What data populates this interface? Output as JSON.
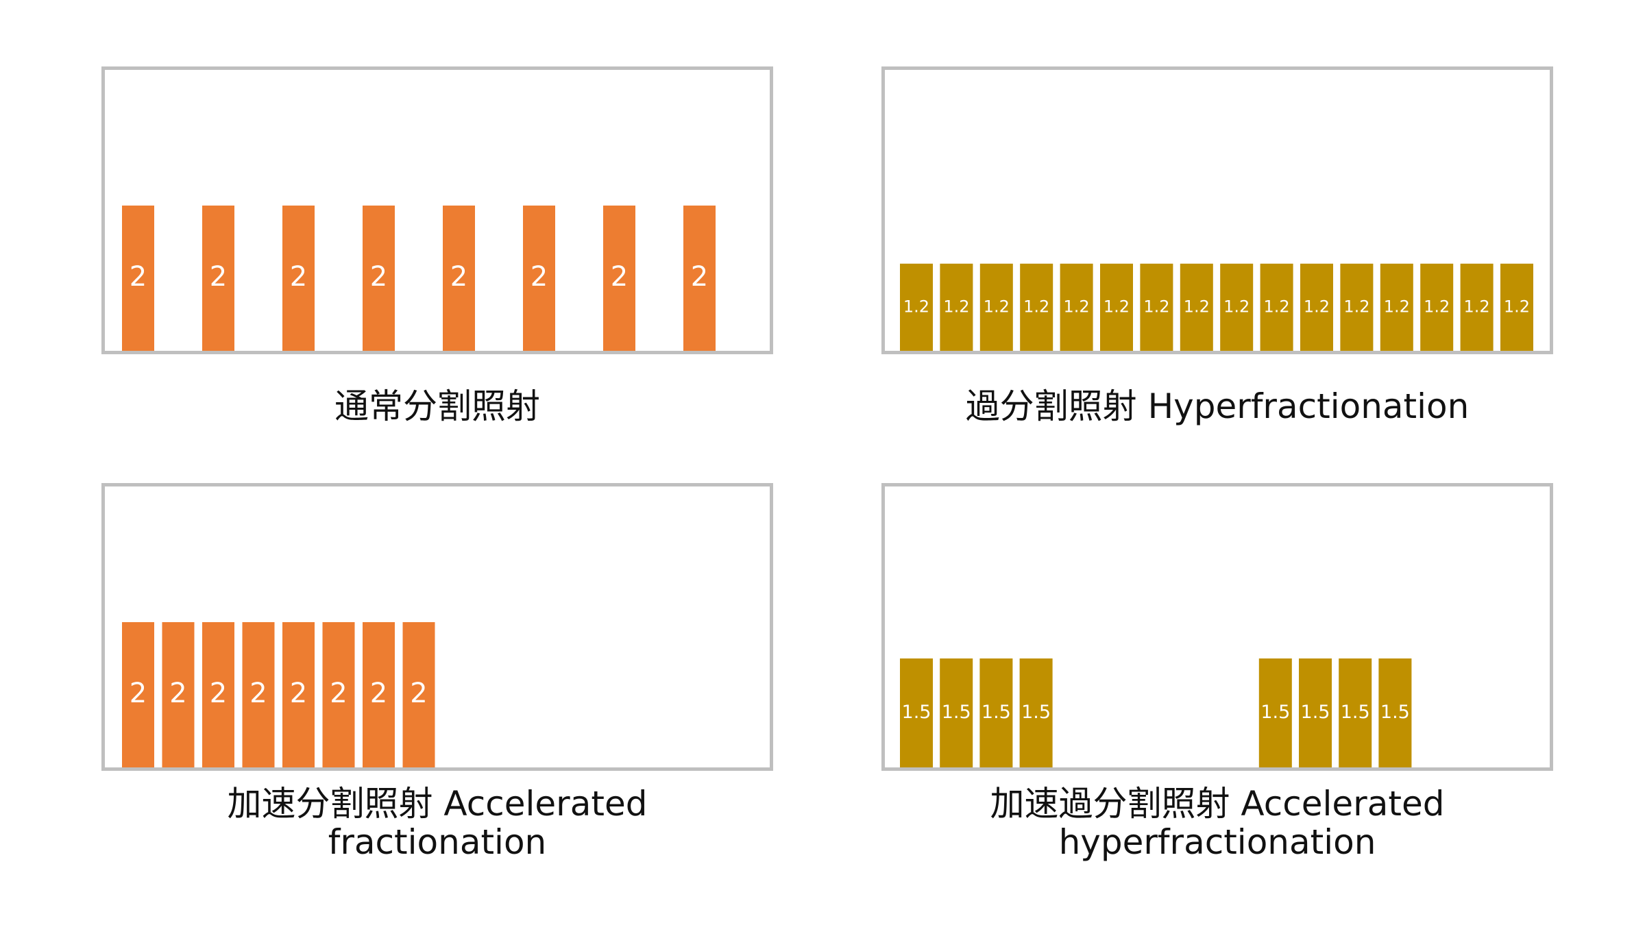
{
  "colors": {
    "standard": "#ed7d31",
    "hyper": "#bf9000",
    "frame": "#bfbfbf",
    "label": "#ffffff"
  },
  "chart_data": [
    {
      "type": "bar",
      "title": "通常分割照射",
      "caption_lines": [
        "通常分割照射"
      ],
      "values": [
        2,
        2,
        2,
        2,
        2,
        2,
        2,
        2
      ],
      "value_labels": [
        "2",
        "2",
        "2",
        "2",
        "2",
        "2",
        "2",
        "2"
      ],
      "ylim": [
        0,
        4
      ]
    },
    {
      "type": "bar",
      "title": "過分割照射 Hyperfractionation",
      "caption_lines": [
        "過分割照射 Hyperfractionation"
      ],
      "values": [
        1.2,
        1.2,
        1.2,
        1.2,
        1.2,
        1.2,
        1.2,
        1.2,
        1.2,
        1.2,
        1.2,
        1.2,
        1.2,
        1.2,
        1.2,
        1.2
      ],
      "value_labels": [
        "1.2",
        "1.2",
        "1.2",
        "1.2",
        "1.2",
        "1.2",
        "1.2",
        "1.2",
        "1.2",
        "1.2",
        "1.2",
        "1.2",
        "1.2",
        "1.2",
        "1.2",
        "1.2"
      ],
      "ylim": [
        0,
        4
      ]
    },
    {
      "type": "bar",
      "title": "加速分割照射 Accelerated fractionation",
      "caption_lines": [
        "加速分割照射 Accelerated",
        "fractionation"
      ],
      "values": [
        2,
        2,
        2,
        2,
        2,
        2,
        2,
        2
      ],
      "value_labels": [
        "2",
        "2",
        "2",
        "2",
        "2",
        "2",
        "2",
        "2"
      ],
      "ylim": [
        0,
        4
      ]
    },
    {
      "type": "bar",
      "title": "加速過分割照射 Accelerated hyperfractionation",
      "caption_lines": [
        "加速過分割照射 Accelerated",
        "hyperfractionation"
      ],
      "values": [
        1.5,
        1.5,
        1.5,
        1.5,
        1.5,
        1.5,
        1.5,
        1.5
      ],
      "value_labels": [
        "1.5",
        "1.5",
        "1.5",
        "1.5",
        "1.5",
        "1.5",
        "1.5",
        "1.5"
      ],
      "ylim": [
        0,
        4
      ]
    }
  ]
}
